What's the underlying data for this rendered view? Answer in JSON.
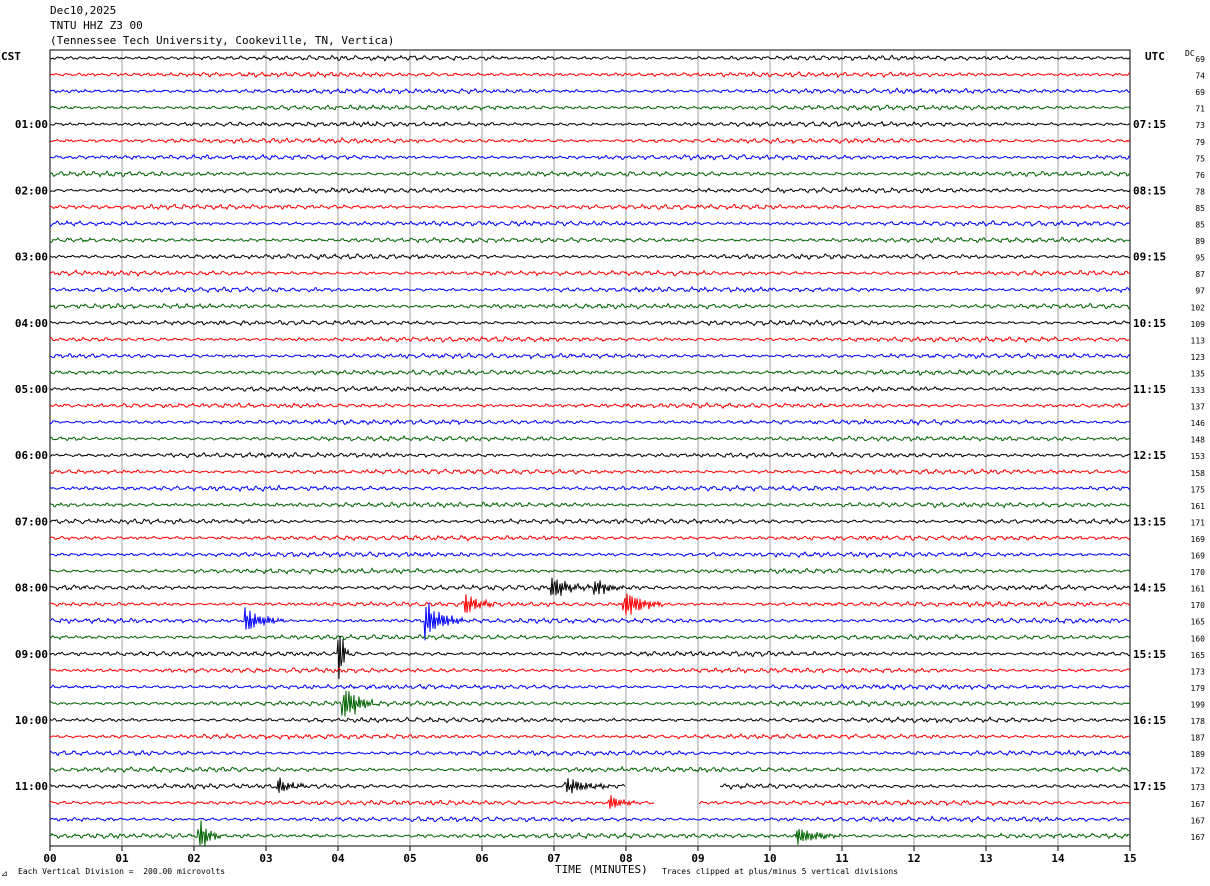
{
  "header": {
    "date": "Dec10,2025",
    "station": "TNTU HHZ Z3 00",
    "location": "(Tennessee Tech University, Cookeville, TN, Vertica)"
  },
  "left_tz": "CST",
  "right_tz": "UTC",
  "dc_label": "DC",
  "footer": {
    "scale_note": "Each Vertical Division =  200.00 microvolts",
    "xlabel": "TIME (MINUTES)",
    "clip_note": "Traces clipped at plus/minus 5 vertical divisions"
  },
  "colors": [
    "#000000",
    "#ff0000",
    "#0000ff",
    "#006400"
  ],
  "chart_data": {
    "type": "line",
    "xlabel": "TIME (MINUTES)",
    "xlim": [
      0,
      15
    ],
    "x_ticks": [
      "00",
      "01",
      "02",
      "03",
      "04",
      "05",
      "06",
      "07",
      "08",
      "09",
      "10",
      "11",
      "12",
      "13",
      "14",
      "15"
    ],
    "left_time_labels": [
      "01:00",
      "02:00",
      "03:00",
      "04:00",
      "05:00",
      "06:00",
      "07:00",
      "08:00",
      "09:00",
      "10:00",
      "11:00"
    ],
    "right_time_labels": [
      "07:15",
      "08:15",
      "09:15",
      "10:15",
      "11:15",
      "12:15",
      "13:15",
      "14:15",
      "15:15",
      "16:15",
      "17:15"
    ],
    "dc_offsets": [
      "69",
      "74",
      "69",
      "71",
      "73",
      "79",
      "75",
      "76",
      "78",
      "85",
      "85",
      "89",
      "95",
      "87",
      "97",
      "102",
      "109",
      "113",
      "123",
      "135",
      "133",
      "137",
      "146",
      "148",
      "153",
      "158",
      "175",
      "161",
      "171",
      "169",
      "169",
      "170",
      "161",
      "170",
      "165",
      "160",
      "165",
      "173",
      "179",
      "199",
      "178",
      "187",
      "189",
      "172",
      "173",
      "167",
      "167",
      "167"
    ],
    "trace_count": 48,
    "trace_minutes": 15,
    "events": [
      {
        "trace": 32,
        "minute": 7.0,
        "amplitude": 2.0,
        "duration": 0.5
      },
      {
        "trace": 32,
        "minute": 7.6,
        "amplitude": 1.4,
        "duration": 0.4
      },
      {
        "trace": 33,
        "minute": 5.8,
        "amplitude": 2.2,
        "duration": 0.4
      },
      {
        "trace": 33,
        "minute": 8.0,
        "amplitude": 2.8,
        "duration": 0.5
      },
      {
        "trace": 34,
        "minute": 2.75,
        "amplitude": 2.2,
        "duration": 0.5
      },
      {
        "trace": 34,
        "minute": 5.25,
        "amplitude": 3.2,
        "duration": 0.5
      },
      {
        "trace": 36,
        "minute": 4.05,
        "amplitude": 5.0,
        "duration": 0.1
      },
      {
        "trace": 39,
        "minute": 4.1,
        "amplitude": 3.5,
        "duration": 0.4
      },
      {
        "trace": 44,
        "minute": 3.2,
        "amplitude": 1.5,
        "duration": 0.4
      },
      {
        "trace": 44,
        "minute": 7.2,
        "amplitude": 1.5,
        "duration": 0.6
      },
      {
        "trace": 45,
        "minute": 7.8,
        "amplitude": 1.3,
        "duration": 0.4
      },
      {
        "trace": 47,
        "minute": 2.1,
        "amplitude": 2.5,
        "duration": 0.3
      },
      {
        "trace": 47,
        "minute": 10.4,
        "amplitude": 1.6,
        "duration": 0.6
      }
    ],
    "gaps": [
      {
        "trace": 44,
        "start_minute": 8.0,
        "end_minute": 9.3
      },
      {
        "trace": 45,
        "start_minute": 8.4,
        "end_minute": 9.0
      }
    ]
  }
}
